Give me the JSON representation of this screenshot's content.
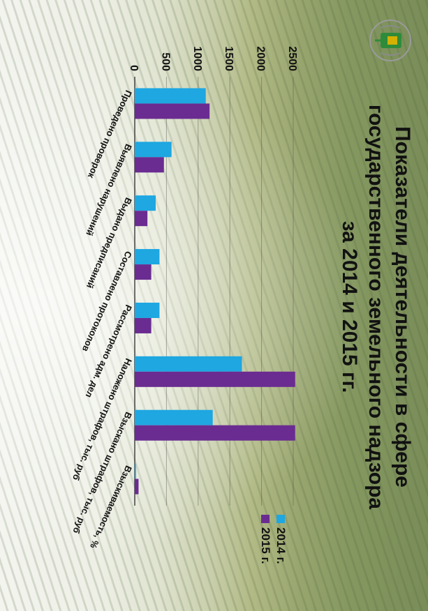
{
  "title_lines": [
    "Показатели деятельности в сфере",
    "государственного земельного надзора",
    "за 2014 и 2015 гг."
  ],
  "colors": {
    "series_2014": "#1ea7e1",
    "series_2015": "#6a2c91",
    "emblem_green": "#2e8b3a",
    "emblem_gold": "#d4b000"
  },
  "icons": {
    "emblem": "rosreestr-emblem-icon"
  },
  "chart_data": {
    "type": "bar",
    "orientation": "vertical-bars-in-rotated-slide",
    "categories": [
      "Проведено проверок",
      "Выявлено нарушений",
      "Выдано предписаний",
      "Составлено протоколов",
      "Рассмотрено адм. дел",
      "Наложено штрафов, тыс. руб",
      "Взыскано штрафов, тыс. руб",
      "Взыскиваемость, %"
    ],
    "series": [
      {
        "name": "2014 г.",
        "values": [
          1120,
          580,
          330,
          390,
          390,
          1690,
          1230,
          20
        ]
      },
      {
        "name": "2015 г.",
        "values": [
          1180,
          460,
          200,
          260,
          260,
          2530,
          2530,
          60
        ]
      }
    ],
    "y_ticks": [
      "0",
      "500",
      "1000",
      "1500",
      "2000",
      "2500"
    ],
    "ylim": [
      0,
      2500
    ],
    "grid": true,
    "legend_position": "right"
  }
}
